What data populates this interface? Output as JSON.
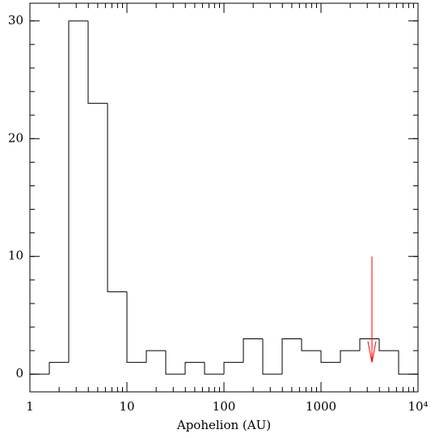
{
  "chart_data": {
    "type": "histogram",
    "xlabel": "Apohelion (AU)",
    "bins": [
      1,
      1.585,
      2.512,
      3.981,
      6.31,
      10,
      15.85,
      25.12,
      39.81,
      63.1,
      100,
      158.5,
      251.2,
      398.1,
      631,
      1000,
      1585,
      2512,
      3981,
      6310,
      10000
    ],
    "values": [
      0,
      1,
      30,
      23,
      7,
      1,
      2,
      0,
      1,
      0,
      1,
      3,
      0,
      3,
      2,
      1,
      2,
      3,
      2,
      0
    ],
    "color": "#000000",
    "xscale": "log",
    "xlim": [
      1,
      10000
    ],
    "xticks": [
      1,
      10,
      100,
      1000,
      {
        "value": 10000,
        "label": "10⁴"
      }
    ],
    "ylim": [
      -1.5,
      31.5
    ],
    "yticks": [
      0,
      10,
      20,
      30
    ],
    "grid": false,
    "arrow": {
      "x": 3350,
      "y_start": 10,
      "y_end": 1,
      "color": "#ff0000"
    }
  }
}
